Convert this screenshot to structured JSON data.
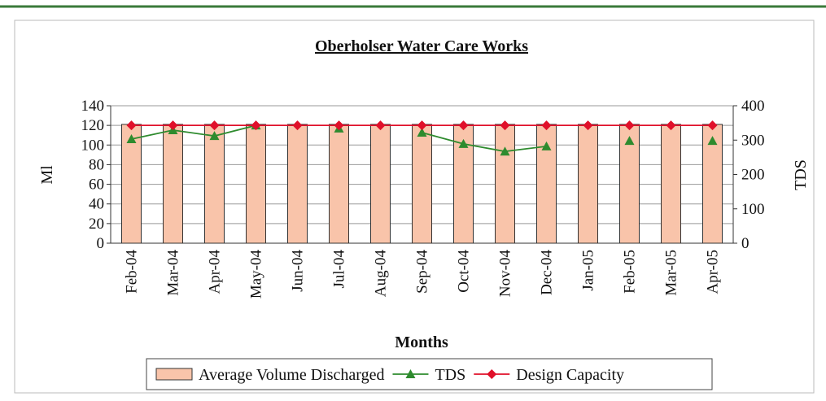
{
  "chart_data": {
    "type": "bar",
    "title": "Oberholser Water Care Works",
    "xlabel": "Months",
    "ylabel": "Ml",
    "y2label": "TDS",
    "categories": [
      "Feb-04",
      "Mar-04",
      "Apr-04",
      "May-04",
      "Jun-04",
      "Jul-04",
      "Aug-04",
      "Sep-04",
      "Oct-04",
      "Nov-04",
      "Dec-04",
      "Jan-05",
      "Feb-05",
      "Mar-05",
      "Apr-05"
    ],
    "series": [
      {
        "name": "Average Volume Discharged",
        "type": "bar",
        "color": "#f9c4aa",
        "values": [
          121,
          121,
          121,
          121,
          121,
          121,
          121,
          121,
          121,
          121,
          121,
          121,
          121,
          121,
          121
        ]
      },
      {
        "name": "TDS",
        "type": "line",
        "axis": "y2",
        "color": "#2e8b2e",
        "values": [
          303,
          329,
          312,
          343,
          null,
          334,
          null,
          322,
          289,
          267,
          282,
          null,
          298,
          null,
          298
        ]
      },
      {
        "name": "Design Capacity",
        "type": "line",
        "color": "#e0102a",
        "values": [
          120,
          120,
          120,
          120,
          120,
          120,
          120,
          120,
          120,
          120,
          120,
          120,
          120,
          120,
          120
        ]
      }
    ],
    "ylim": [
      0,
      140
    ],
    "yticks": [
      0,
      20,
      40,
      60,
      80,
      100,
      120,
      140
    ],
    "y2lim": [
      0,
      400
    ],
    "y2ticks": [
      0,
      100,
      200,
      300,
      400
    ],
    "grid": true
  }
}
